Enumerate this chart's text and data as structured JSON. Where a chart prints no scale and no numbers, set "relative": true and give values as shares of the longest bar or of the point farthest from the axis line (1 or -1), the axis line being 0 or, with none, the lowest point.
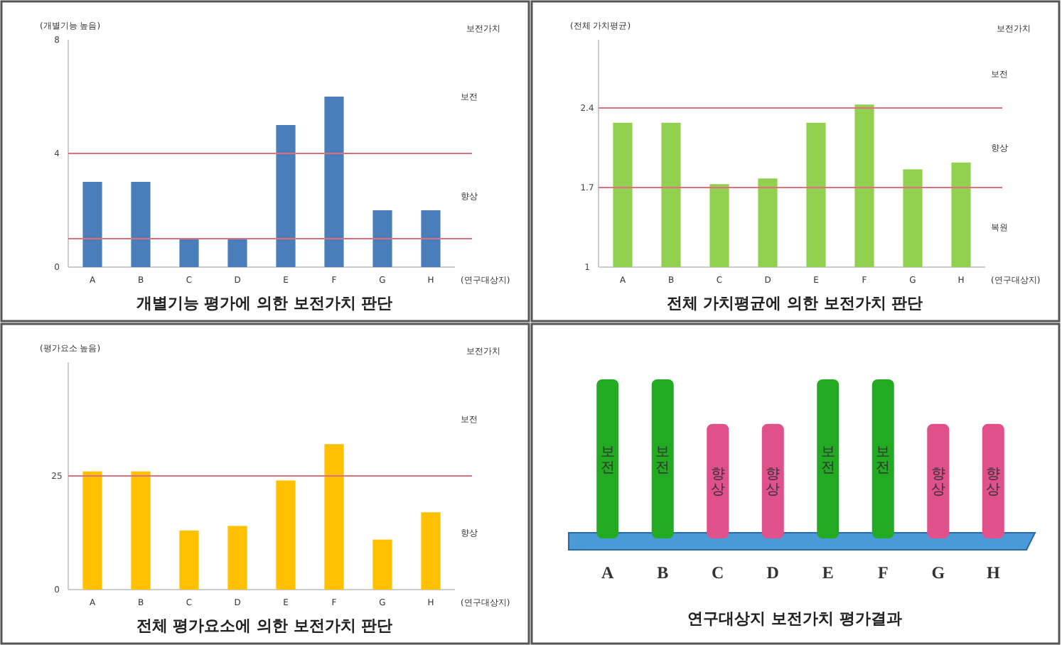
{
  "chart_data": [
    {
      "type": "bar",
      "title": "개별기능 평가에 의한 보전가치 판단",
      "ylabel": "(개별기능 높음)",
      "xlabel": "(연구대상지)",
      "categories": [
        "A",
        "B",
        "C",
        "D",
        "E",
        "F",
        "G",
        "H"
      ],
      "values": [
        3,
        3,
        1,
        1,
        5,
        6,
        2,
        2
      ],
      "color": "#4a7ebb",
      "ylim": [
        0,
        8
      ],
      "yticks": [
        0,
        4,
        8
      ],
      "ref_lines": [
        {
          "axis": "y",
          "value": 4,
          "color": "#e07080"
        },
        {
          "axis": "y",
          "value": 1,
          "color": "#e07080"
        }
      ],
      "annotations": [
        "보전가치",
        "보전",
        "향상"
      ]
    },
    {
      "type": "bar",
      "title": "전체 가치평균에 의한 보전가치 판단",
      "ylabel": "(전체 가치평균)",
      "xlabel": "(연구대상지)",
      "categories": [
        "A",
        "B",
        "C",
        "D",
        "E",
        "F",
        "G",
        "H"
      ],
      "values": [
        2.27,
        2.27,
        1.73,
        1.78,
        2.27,
        2.43,
        1.86,
        1.92
      ],
      "color": "#92d050",
      "ylim": [
        1,
        3
      ],
      "yticks": [
        1,
        1.7,
        2.4
      ],
      "ref_lines": [
        {
          "axis": "y",
          "value": 2.4,
          "color": "#e07080"
        },
        {
          "axis": "y",
          "value": 1.7,
          "color": "#e07080"
        }
      ],
      "annotations": [
        "보전가치",
        "보전",
        "향상",
        "복원"
      ]
    },
    {
      "type": "bar",
      "title": "전체 평가요소에 의한 보전가치 판단",
      "ylabel": "(평가요소 높음)",
      "xlabel": "(연구대상지)",
      "categories": [
        "A",
        "B",
        "C",
        "D",
        "E",
        "F",
        "G",
        "H"
      ],
      "values": [
        26,
        26,
        13,
        14,
        24,
        32,
        11,
        17
      ],
      "color": "#ffc000",
      "ylim": [
        0,
        50
      ],
      "yticks": [
        0,
        25
      ],
      "ref_lines": [
        {
          "axis": "y",
          "value": 25,
          "color": "#e07080"
        }
      ],
      "annotations": [
        "보전가치",
        "보전",
        "향상"
      ]
    },
    {
      "type": "bar",
      "title": "연구대상지 보전가치 평가결과",
      "relative": true,
      "categories": [
        "A",
        "B",
        "C",
        "D",
        "E",
        "F",
        "G",
        "H"
      ],
      "values": [
        1,
        1,
        0.72,
        0.72,
        1,
        1,
        0.72,
        0.72
      ],
      "colors": [
        "#22aa22",
        "#22aa22",
        "#e0508a",
        "#e0508a",
        "#22aa22",
        "#22aa22",
        "#e0508a",
        "#e0508a"
      ],
      "annotations": [
        "보전",
        "보전",
        "향상",
        "향상",
        "보전",
        "보전",
        "향상",
        "향상"
      ]
    }
  ]
}
